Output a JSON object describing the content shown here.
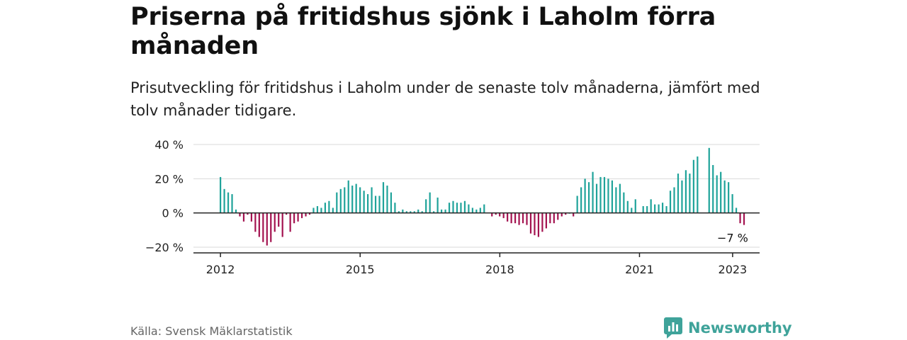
{
  "title": "Priserna på fritidshus sjönk i Laholm förra månaden",
  "subtitle": "Prisutveckling för fritidshus i Laholm under de senaste tolv månaderna, jämfört med tolv månader tidigare.",
  "source": "Källa: Svensk Mäklarstatistik",
  "brand": "Newsworthy",
  "colors": {
    "positive": "#1fa39a",
    "negative": "#a3124f",
    "grid": "#d9d9d9",
    "axis": "#222222",
    "brand": "#3fa39a"
  },
  "chart_data": {
    "type": "bar",
    "y_ticks": [
      {
        "value": -20,
        "label": "−20 %"
      },
      {
        "value": 0,
        "label": "0 %"
      },
      {
        "value": 20,
        "label": "20 %"
      },
      {
        "value": 40,
        "label": "40 %"
      }
    ],
    "x_ticks": [
      {
        "value": 2012,
        "label": "2012"
      },
      {
        "value": 2015,
        "label": "2015"
      },
      {
        "value": 2018,
        "label": "2018"
      },
      {
        "value": 2021,
        "label": "2021"
      },
      {
        "value": 2023,
        "label": "2023"
      }
    ],
    "ylim": [
      -22,
      41
    ],
    "xlim": [
      2011.42,
      2023.58
    ],
    "grid": true,
    "annotation": {
      "label": "−7 %",
      "x": 2023.0,
      "y": -7
    },
    "x_start": 2012.0,
    "x_step": 0.0833,
    "values": [
      21,
      14,
      12,
      11,
      2,
      -2,
      -5,
      -1,
      -5,
      -11,
      -14,
      -17,
      -19,
      -17,
      -11,
      -8,
      -14,
      -1,
      -11,
      -6,
      -5,
      -3,
      -2,
      -1,
      3,
      4,
      3,
      6,
      7,
      3,
      12,
      14,
      15,
      19,
      16,
      17,
      15,
      13,
      11,
      15,
      10,
      10,
      18,
      16,
      12,
      6,
      1,
      2,
      1,
      1,
      1,
      2,
      1,
      8,
      12,
      1,
      9,
      2,
      2,
      6,
      7,
      6,
      6,
      7,
      5,
      3,
      2,
      3,
      5,
      null,
      -2,
      -1,
      -2,
      -3,
      -5,
      -6,
      -6,
      -7,
      -6,
      -7,
      -12,
      -13,
      -14,
      -11,
      -9,
      -6,
      -6,
      -4,
      -2,
      -1,
      0,
      -2,
      10,
      15,
      20,
      18,
      24,
      17,
      21,
      21,
      20,
      19,
      15,
      17,
      12,
      7,
      3,
      8,
      null,
      4,
      4,
      8,
      5,
      5,
      6,
      4,
      13,
      15,
      23,
      19,
      25,
      23,
      31,
      33,
      null,
      null,
      38,
      28,
      22,
      24,
      19,
      18,
      11,
      3,
      -6,
      -7
    ]
  }
}
